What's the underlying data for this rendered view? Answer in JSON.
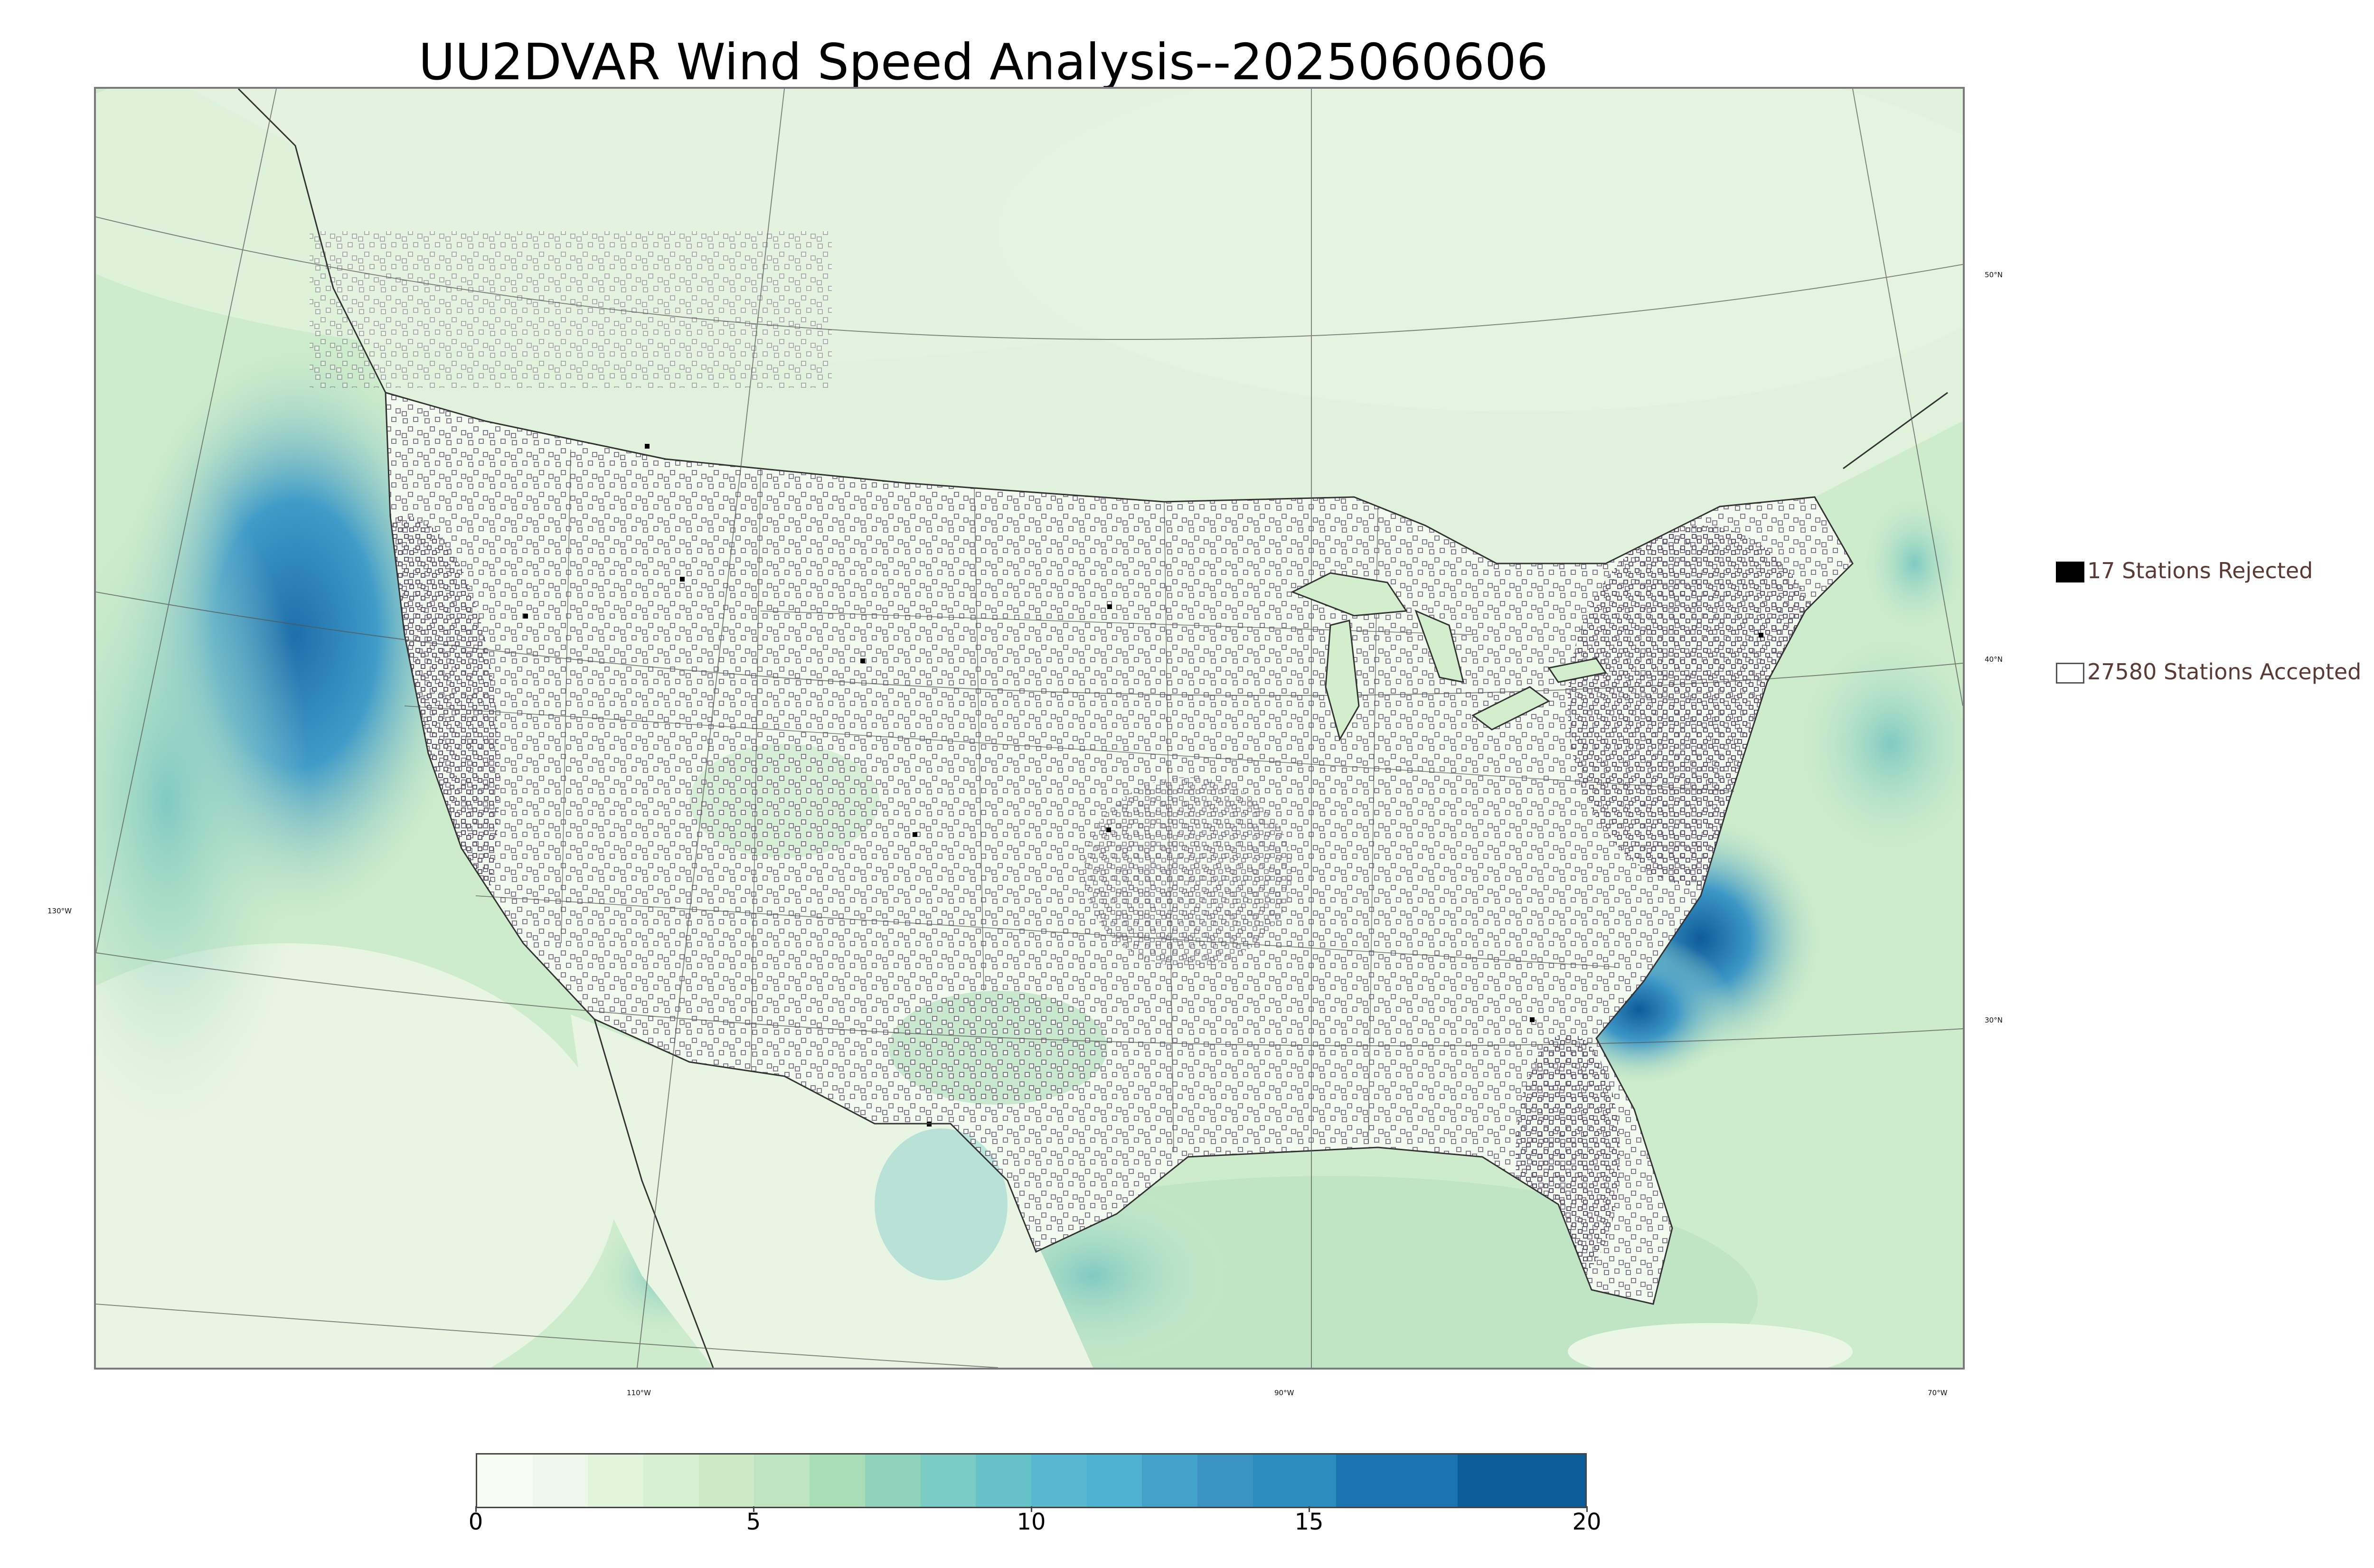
{
  "title": "UU2DVAR Wind Speed Analysis--2025060606",
  "map": {
    "description_colors": {
      "land": "#eef7ea",
      "ocean": "#c6e8c7",
      "strong_wind": "#2a7db8",
      "border": "#333333",
      "station_accepted_edge": "#6b5f73"
    },
    "lat_labels": [
      "50°N",
      "40°N",
      "30°N"
    ],
    "lon_labels": [
      "130°W",
      "110°W",
      "90°W",
      "70°W"
    ]
  },
  "legend": {
    "rejected": {
      "label": "17 Stations Rejected",
      "count": 17
    },
    "accepted": {
      "label": "27580 Stations Accepted",
      "count": 27580
    }
  },
  "colorbar": {
    "min": 0,
    "max": 20,
    "tick_labels": [
      "0",
      "5",
      "10",
      "15",
      "20"
    ],
    "segments": [
      {
        "from": 0,
        "to": 1,
        "color": "#f7fcf0"
      },
      {
        "from": 1,
        "to": 2,
        "color": "#eef8ea"
      },
      {
        "from": 2,
        "to": 3,
        "color": "#e3f4dd"
      },
      {
        "from": 3,
        "to": 4,
        "color": "#d7efd1"
      },
      {
        "from": 4,
        "to": 5,
        "color": "#ccebc5"
      },
      {
        "from": 5,
        "to": 6,
        "color": "#bde5bf"
      },
      {
        "from": 6,
        "to": 7,
        "color": "#a8ddb5"
      },
      {
        "from": 7,
        "to": 8,
        "color": "#8fd3bd"
      },
      {
        "from": 8,
        "to": 9,
        "color": "#7bccc4"
      },
      {
        "from": 9,
        "to": 10,
        "color": "#66c2c9"
      },
      {
        "from": 10,
        "to": 11,
        "color": "#58b7d1"
      },
      {
        "from": 11,
        "to": 12,
        "color": "#4eb3d3"
      },
      {
        "from": 12,
        "to": 13,
        "color": "#43a2ca"
      },
      {
        "from": 13,
        "to": 14,
        "color": "#3a93c3"
      },
      {
        "from": 14,
        "to": 15.5,
        "color": "#2b8cbe"
      },
      {
        "from": 15.5,
        "to": 17.7,
        "color": "#1a74b0"
      },
      {
        "from": 17.7,
        "to": 20,
        "color": "#0c5c98"
      }
    ]
  }
}
